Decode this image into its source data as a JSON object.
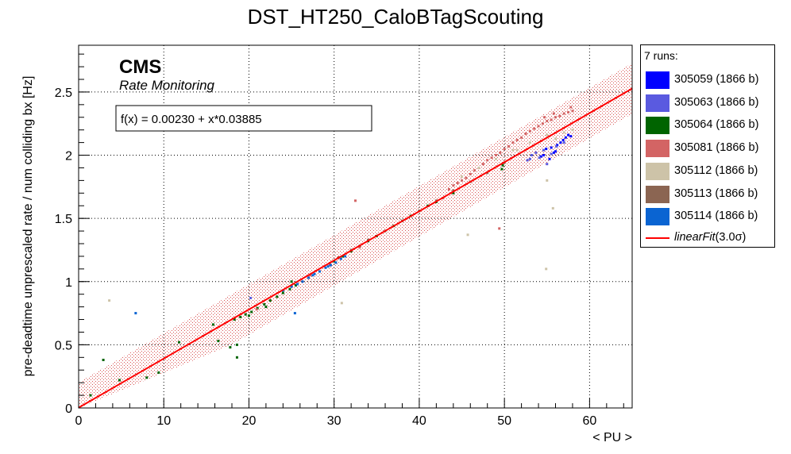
{
  "chart_data": {
    "type": "scatter",
    "title": "DST_HT250_CaloBTagScouting",
    "xlabel": "< PU >",
    "ylabel": "pre-deadtime unprescaled rate / num colliding bx [Hz]",
    "xlim": [
      0,
      65
    ],
    "ylim": [
      0,
      2.87
    ],
    "x_ticks": [
      0,
      10,
      20,
      30,
      40,
      50,
      60
    ],
    "y_ticks": [
      0,
      0.5,
      1,
      1.5,
      2,
      2.5
    ],
    "grid": true,
    "cms_label": "CMS",
    "cms_sublabel": "Rate Monitoring",
    "fit_formula": "f(x) = 0.00230 + x*0.03885",
    "fit": {
      "intercept": 0.0023,
      "slope": 0.03885,
      "band_halfwidth": 0.2,
      "color": "#ff0000"
    },
    "legend_header": "7 runs:",
    "legend_position": "right, outside plot",
    "series": [
      {
        "name": "305059 (1866 b)",
        "color": "#0000ff",
        "points": [
          [
            54.6,
            2.0
          ],
          [
            54.9,
            2.05
          ],
          [
            55.3,
            1.97
          ],
          [
            55.8,
            2.02
          ],
          [
            56.2,
            2.08
          ],
          [
            56.6,
            2.1
          ],
          [
            56.9,
            2.12
          ],
          [
            57.2,
            2.14
          ],
          [
            57.5,
            2.16
          ],
          [
            57.8,
            2.15
          ],
          [
            55.5,
            2.06
          ],
          [
            56.0,
            2.03
          ],
          [
            54.3,
            1.99
          ]
        ]
      },
      {
        "name": "305063 (1866 b)",
        "color": "#5a5ae0",
        "points": [
          [
            52.7,
            1.96
          ],
          [
            53.2,
            2.0
          ],
          [
            53.7,
            2.02
          ],
          [
            54.1,
            1.98
          ],
          [
            54.6,
            2.04
          ],
          [
            55.0,
            1.93
          ],
          [
            55.5,
            2.01
          ],
          [
            56.1,
            2.07
          ],
          [
            20.2,
            0.87
          ],
          [
            57.0,
            2.1
          ],
          [
            53.0,
            1.97
          ]
        ]
      },
      {
        "name": "305064 (1866 b)",
        "color": "#006400",
        "points": [
          [
            18.3,
            0.7
          ],
          [
            19.0,
            0.72
          ],
          [
            19.6,
            0.74
          ],
          [
            20.3,
            0.76
          ],
          [
            21.0,
            0.79
          ],
          [
            21.8,
            0.82
          ],
          [
            22.5,
            0.85
          ],
          [
            23.3,
            0.88
          ],
          [
            24.0,
            0.91
          ],
          [
            24.8,
            0.94
          ],
          [
            25.5,
            0.97
          ],
          [
            30.0,
            1.16
          ],
          [
            31.0,
            1.2
          ],
          [
            32.0,
            1.24
          ],
          [
            33.0,
            1.28
          ],
          [
            34.0,
            1.32
          ],
          [
            35.0,
            1.36
          ],
          [
            36.0,
            1.4
          ],
          [
            37.0,
            1.44
          ],
          [
            38.0,
            1.48
          ],
          [
            39.0,
            1.52
          ],
          [
            40.0,
            1.56
          ],
          [
            41.0,
            1.6
          ],
          [
            42.0,
            1.63
          ],
          [
            1.4,
            0.1
          ],
          [
            2.9,
            0.38
          ],
          [
            4.8,
            0.22
          ],
          [
            9.4,
            0.28
          ],
          [
            11.8,
            0.52
          ],
          [
            15.8,
            0.66
          ],
          [
            16.4,
            0.53
          ],
          [
            17.8,
            0.48
          ],
          [
            18.6,
            0.5
          ],
          [
            18.6,
            0.4
          ],
          [
            20.0,
            0.73
          ],
          [
            25.0,
            1.0
          ],
          [
            44.0,
            1.7
          ],
          [
            49.7,
            1.89
          ],
          [
            49.8,
            1.92
          ],
          [
            22.0,
            0.8
          ],
          [
            8.0,
            0.24
          ]
        ]
      },
      {
        "name": "305081 (1866 b)",
        "color": "#d36464",
        "points": [
          [
            43.5,
            1.73
          ],
          [
            44.0,
            1.76
          ],
          [
            44.5,
            1.78
          ],
          [
            45.0,
            1.8
          ],
          [
            45.5,
            1.82
          ],
          [
            46.0,
            1.85
          ],
          [
            46.5,
            1.88
          ],
          [
            47.0,
            1.9
          ],
          [
            47.5,
            1.93
          ],
          [
            48.0,
            1.96
          ],
          [
            48.5,
            1.98
          ],
          [
            49.0,
            2.0
          ],
          [
            49.5,
            2.02
          ],
          [
            50.0,
            2.05
          ],
          [
            50.5,
            2.07
          ],
          [
            51.0,
            2.1
          ],
          [
            51.5,
            2.12
          ],
          [
            52.0,
            2.14
          ],
          [
            52.5,
            2.17
          ],
          [
            53.0,
            2.19
          ],
          [
            53.5,
            2.21
          ],
          [
            54.0,
            2.23
          ],
          [
            54.5,
            2.25
          ],
          [
            55.0,
            2.27
          ],
          [
            55.5,
            2.28
          ],
          [
            56.0,
            2.3
          ],
          [
            56.5,
            2.31
          ],
          [
            57.0,
            2.33
          ],
          [
            57.5,
            2.34
          ],
          [
            58.0,
            2.35
          ],
          [
            57.8,
            2.38
          ],
          [
            55.8,
            2.33
          ],
          [
            54.7,
            2.3
          ],
          [
            49.4,
            1.42
          ],
          [
            32.5,
            1.64
          ],
          [
            42.8,
            1.66
          ],
          [
            20.9,
            0.78
          ],
          [
            25.0,
            0.96
          ],
          [
            27.2,
            1.05
          ],
          [
            29.5,
            1.14
          ],
          [
            33.0,
            1.27
          ]
        ]
      },
      {
        "name": "305112 (1866 b)",
        "color": "#cdc3a8",
        "points": [
          [
            45.0,
            1.83
          ],
          [
            47.0,
            1.9
          ],
          [
            49.0,
            1.97
          ],
          [
            51.0,
            2.04
          ],
          [
            53.0,
            2.1
          ],
          [
            55.0,
            2.16
          ],
          [
            56.0,
            2.13
          ],
          [
            57.0,
            2.18
          ],
          [
            58.0,
            2.2
          ],
          [
            3.6,
            0.85
          ],
          [
            30.9,
            0.83
          ],
          [
            45.7,
            1.37
          ],
          [
            54.9,
            1.1
          ],
          [
            55.0,
            1.8
          ],
          [
            55.7,
            1.58
          ],
          [
            51.5,
            2.04
          ]
        ]
      },
      {
        "name": "305113 (1866 b)",
        "color": "#8b6552",
        "points": [
          [
            30.5,
            1.19
          ],
          [
            32.0,
            1.25
          ],
          [
            34.0,
            1.33
          ],
          [
            36.0,
            1.4
          ],
          [
            38.0,
            1.48
          ],
          [
            40.0,
            1.56
          ],
          [
            42.0,
            1.64
          ],
          [
            44.0,
            1.72
          ],
          [
            46.0,
            1.79
          ],
          [
            48.0,
            1.86
          ],
          [
            50.0,
            1.94
          ]
        ]
      },
      {
        "name": "305114 (1866 b)",
        "color": "#0a64d2",
        "points": [
          [
            24.0,
            0.93
          ],
          [
            25.0,
            0.96
          ],
          [
            25.7,
            0.98
          ],
          [
            26.3,
            1.0
          ],
          [
            27.0,
            1.03
          ],
          [
            27.7,
            1.06
          ],
          [
            28.3,
            1.08
          ],
          [
            29.0,
            1.11
          ],
          [
            29.6,
            1.13
          ],
          [
            30.2,
            1.15
          ],
          [
            30.8,
            1.18
          ],
          [
            31.3,
            1.2
          ],
          [
            6.7,
            0.75
          ],
          [
            25.4,
            0.75
          ],
          [
            27.5,
            1.05
          ],
          [
            29.3,
            1.12
          ]
        ]
      }
    ],
    "fit_legend_prefix": "linearFit",
    "fit_legend_suffix": "(3.0σ)"
  }
}
